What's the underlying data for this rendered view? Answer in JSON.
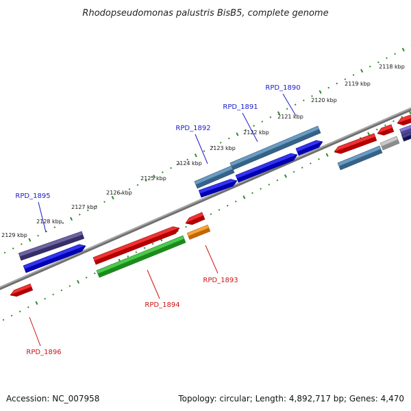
{
  "title": "Rhodopseudomonas palustris BisB5, complete genome",
  "footer": {
    "accession": "Accession: NC_007958",
    "summary": "Topology: circular; Length: 4,892,717 bp; Genes: 4,470"
  },
  "colors": {
    "backbone": "#888888",
    "tick": "#2a8a2a",
    "label_blue": "#1a1acc",
    "label_red": "#cc1111",
    "tick_text": "#111111"
  },
  "ticks": [
    {
      "label": "2118 kbp"
    },
    {
      "label": "2119 kbp"
    },
    {
      "label": "2120 kbp"
    },
    {
      "label": "2121 kbp"
    },
    {
      "label": "2122 kbp"
    },
    {
      "label": "2123 kbp"
    },
    {
      "label": "2124 kbp"
    },
    {
      "label": "2125 kbp"
    },
    {
      "label": "2126 kbp"
    },
    {
      "label": "2127 kbp"
    },
    {
      "label": "2128 kbp"
    },
    {
      "label": "2129 kbp"
    }
  ],
  "gene_labels": [
    {
      "id": "g1890",
      "text": "RPD_1890",
      "color": "#1a1acc"
    },
    {
      "id": "g1891",
      "text": "RPD_1891",
      "color": "#1a1acc"
    },
    {
      "id": "g1892",
      "text": "RPD_1892",
      "color": "#1a1acc"
    },
    {
      "id": "g1895",
      "text": "RPD_1895",
      "color": "#1a1acc"
    },
    {
      "id": "g1893",
      "text": "RPD_1893",
      "color": "#cc1111"
    },
    {
      "id": "g1894",
      "text": "RPD_1894",
      "color": "#cc1111"
    },
    {
      "id": "g1896",
      "text": "RPD_1896",
      "color": "#cc1111"
    }
  ],
  "features": [
    {
      "name": "feature-blue-1891",
      "color": "#0000ee"
    },
    {
      "name": "feature-blue-1890",
      "color": "#0000ee"
    },
    {
      "name": "feature-blue-1892",
      "color": "#0000ee"
    },
    {
      "name": "feature-blue-1895",
      "color": "#0000ee"
    },
    {
      "name": "feature-steel-1891",
      "color": "#4682b4"
    },
    {
      "name": "feature-steel-1892",
      "color": "#4682b4"
    },
    {
      "name": "feature-steel-right",
      "color": "#4682b4"
    },
    {
      "name": "feature-navy-1895",
      "color": "#483d8b"
    },
    {
      "name": "feature-navy-right",
      "color": "#191970"
    },
    {
      "name": "feature-slate-right",
      "color": "#6a5acd"
    },
    {
      "name": "feature-red-1894",
      "color": "#ee0000"
    },
    {
      "name": "feature-red-small",
      "color": "#ee0000"
    },
    {
      "name": "feature-red-1896",
      "color": "#ee0000"
    },
    {
      "name": "feature-red-right-1",
      "color": "#ee0000"
    },
    {
      "name": "feature-red-right-2",
      "color": "#ee0000"
    },
    {
      "name": "feature-red-right-3",
      "color": "#ee0000"
    },
    {
      "name": "feature-green-1894",
      "color": "#22bb22"
    },
    {
      "name": "feature-orange-1893",
      "color": "#ff8c00"
    },
    {
      "name": "feature-gray-right",
      "color": "#bbbbbb"
    }
  ]
}
